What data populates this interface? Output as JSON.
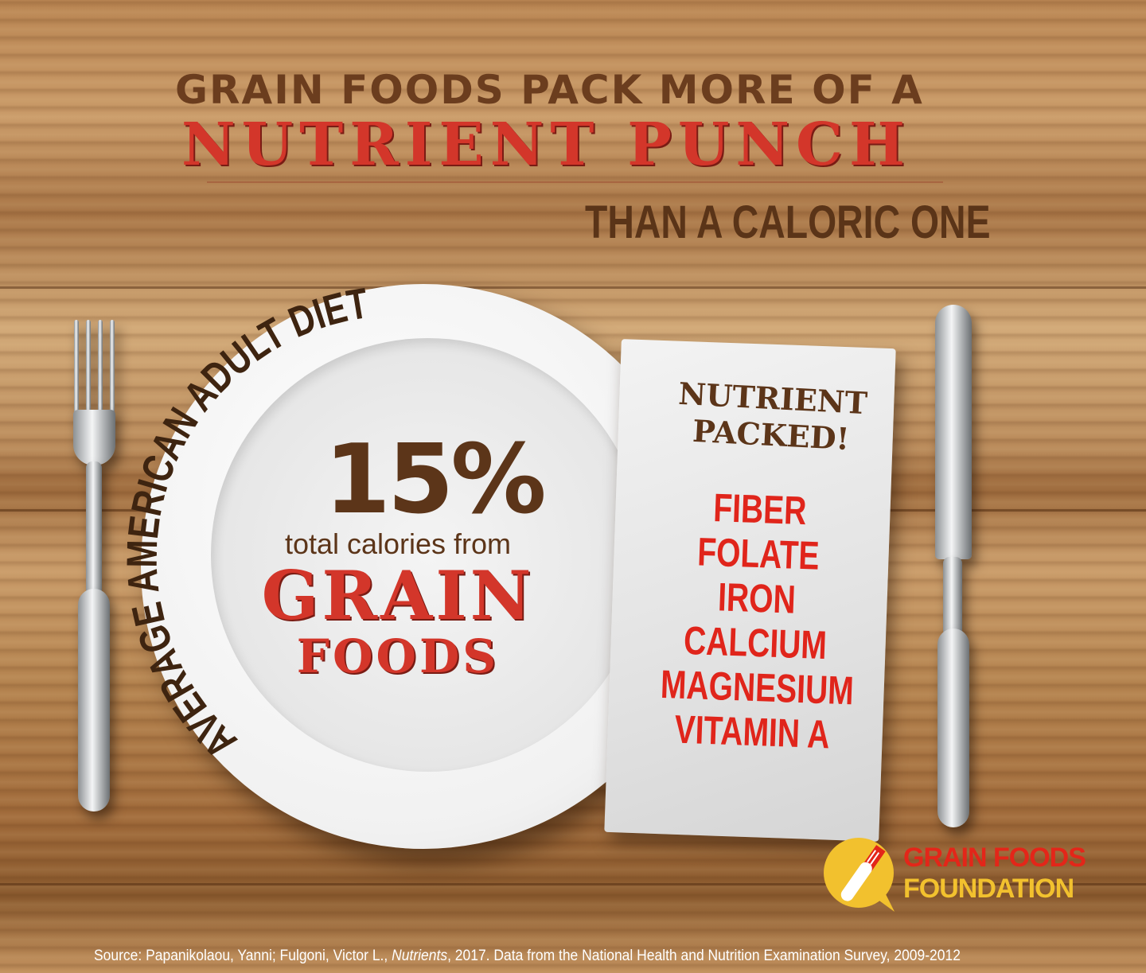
{
  "headline": {
    "line1": "GRAIN FOODS PACK MORE OF A",
    "line2": "NUTRIENT PUNCH",
    "line3": "THAN A CALORIC ONE"
  },
  "plate": {
    "arc_text": "AVERAGE AMERICAN ADULT DIET",
    "percent": "15%",
    "subtitle": "total calories from",
    "emphasis1": "GRAIN",
    "emphasis2": "FOODS"
  },
  "napkin": {
    "heading_line1": "NUTRIENT",
    "heading_line2": "PACKED!",
    "nutrients": [
      "FIBER",
      "FOLATE",
      "IRON",
      "CALCIUM",
      "MAGNESIUM",
      "VITAMIN A"
    ]
  },
  "logo": {
    "line1": "GRAIN FOODS",
    "line2": "FOUNDATION"
  },
  "source": {
    "prefix": "Source: Papanikolaou, Yanni; Fulgoni, Victor L., ",
    "journal": "Nutrients",
    "suffix": ", 2017. Data from the National Health and Nutrition Examination Survey, 2009-2012"
  },
  "colors": {
    "brown": "#5c3519",
    "red": "#d3362a",
    "gold": "#f2c12e",
    "wood": "#b98552"
  }
}
